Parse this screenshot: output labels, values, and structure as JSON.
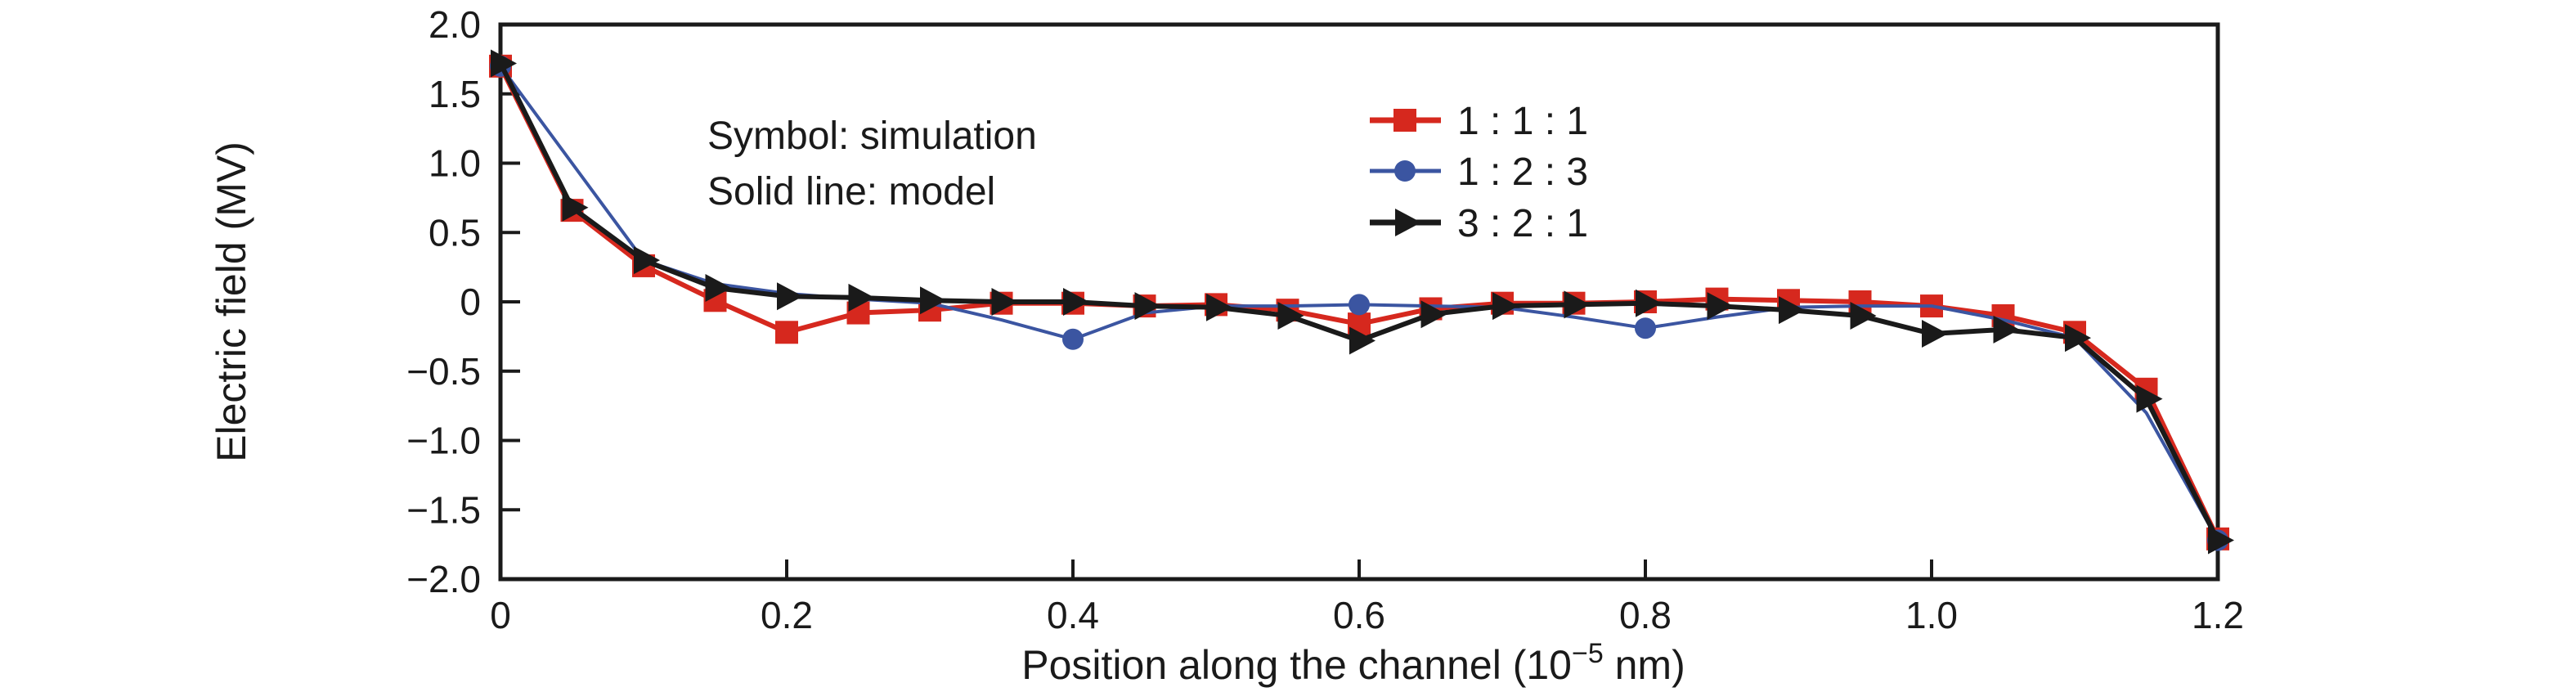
{
  "chart_data": {
    "type": "line",
    "title": "",
    "ylabel": "Electric field (MV)",
    "xlabel_prefix": "Position along the channel (10",
    "xlabel_sup": "−5",
    "xlabel_suffix": " nm)",
    "annotation_lines": [
      "Symbol: simulation",
      "Solid line: model"
    ],
    "xlim": [
      0,
      1.2
    ],
    "ylim": [
      -2.0,
      2.0
    ],
    "grid": false,
    "legend_position": "upper-center",
    "xticks": {
      "values": [
        0,
        0.2,
        0.4,
        0.6,
        0.8,
        1.0,
        1.2
      ],
      "labels": [
        "0",
        "0.2",
        "0.4",
        "0.6",
        "0.8",
        "1.0",
        "1.2"
      ]
    },
    "yticks": {
      "values": [
        2.0,
        1.5,
        1.0,
        0.5,
        0,
        -0.5,
        -1.0,
        -1.5,
        -2.0
      ],
      "labels": [
        "2.0",
        "1.5",
        "1.0",
        "0.5",
        "0",
        "−0.5",
        "−1.0",
        "−1.5",
        "−2.0"
      ]
    },
    "x": [
      0,
      0.05,
      0.1,
      0.15,
      0.2,
      0.25,
      0.3,
      0.35,
      0.4,
      0.45,
      0.5,
      0.55,
      0.6,
      0.65,
      0.7,
      0.75,
      0.8,
      0.85,
      0.9,
      0.95,
      1.0,
      1.05,
      1.1,
      1.15,
      1.2
    ],
    "series": [
      {
        "name": "1 : 1 : 1",
        "color": "#d6281e",
        "marker": "square",
        "line_width": 6,
        "values": [
          1.7,
          0.66,
          0.26,
          0.01,
          -0.22,
          -0.08,
          -0.06,
          -0.01,
          -0.01,
          -0.03,
          -0.02,
          -0.06,
          -0.16,
          -0.05,
          -0.01,
          -0.01,
          0.0,
          0.02,
          0.01,
          0.0,
          -0.03,
          -0.1,
          -0.22,
          -0.63,
          -1.71
        ]
      },
      {
        "name": "1 : 2 : 3",
        "color": "#3b55a1",
        "marker": "circle",
        "line_width": 4,
        "marker_x": [
          0,
          0.4,
          0.6,
          0.8,
          1.2
        ],
        "values": [
          1.7,
          1.0,
          0.3,
          0.13,
          0.06,
          0.02,
          -0.01,
          -0.13,
          -0.27,
          -0.08,
          -0.03,
          -0.03,
          -0.02,
          -0.03,
          -0.04,
          -0.11,
          -0.19,
          -0.11,
          -0.04,
          -0.03,
          -0.03,
          -0.13,
          -0.26,
          -0.8,
          -1.72
        ]
      },
      {
        "name": "3 : 2 : 1",
        "color": "#1a1a1a",
        "marker": "triangle-right",
        "line_width": 6,
        "values": [
          1.72,
          0.68,
          0.3,
          0.1,
          0.04,
          0.03,
          0.01,
          0.0,
          0.0,
          -0.03,
          -0.04,
          -0.1,
          -0.28,
          -0.09,
          -0.03,
          -0.02,
          -0.01,
          -0.03,
          -0.06,
          -0.1,
          -0.23,
          -0.2,
          -0.26,
          -0.7,
          -1.72
        ]
      }
    ]
  }
}
